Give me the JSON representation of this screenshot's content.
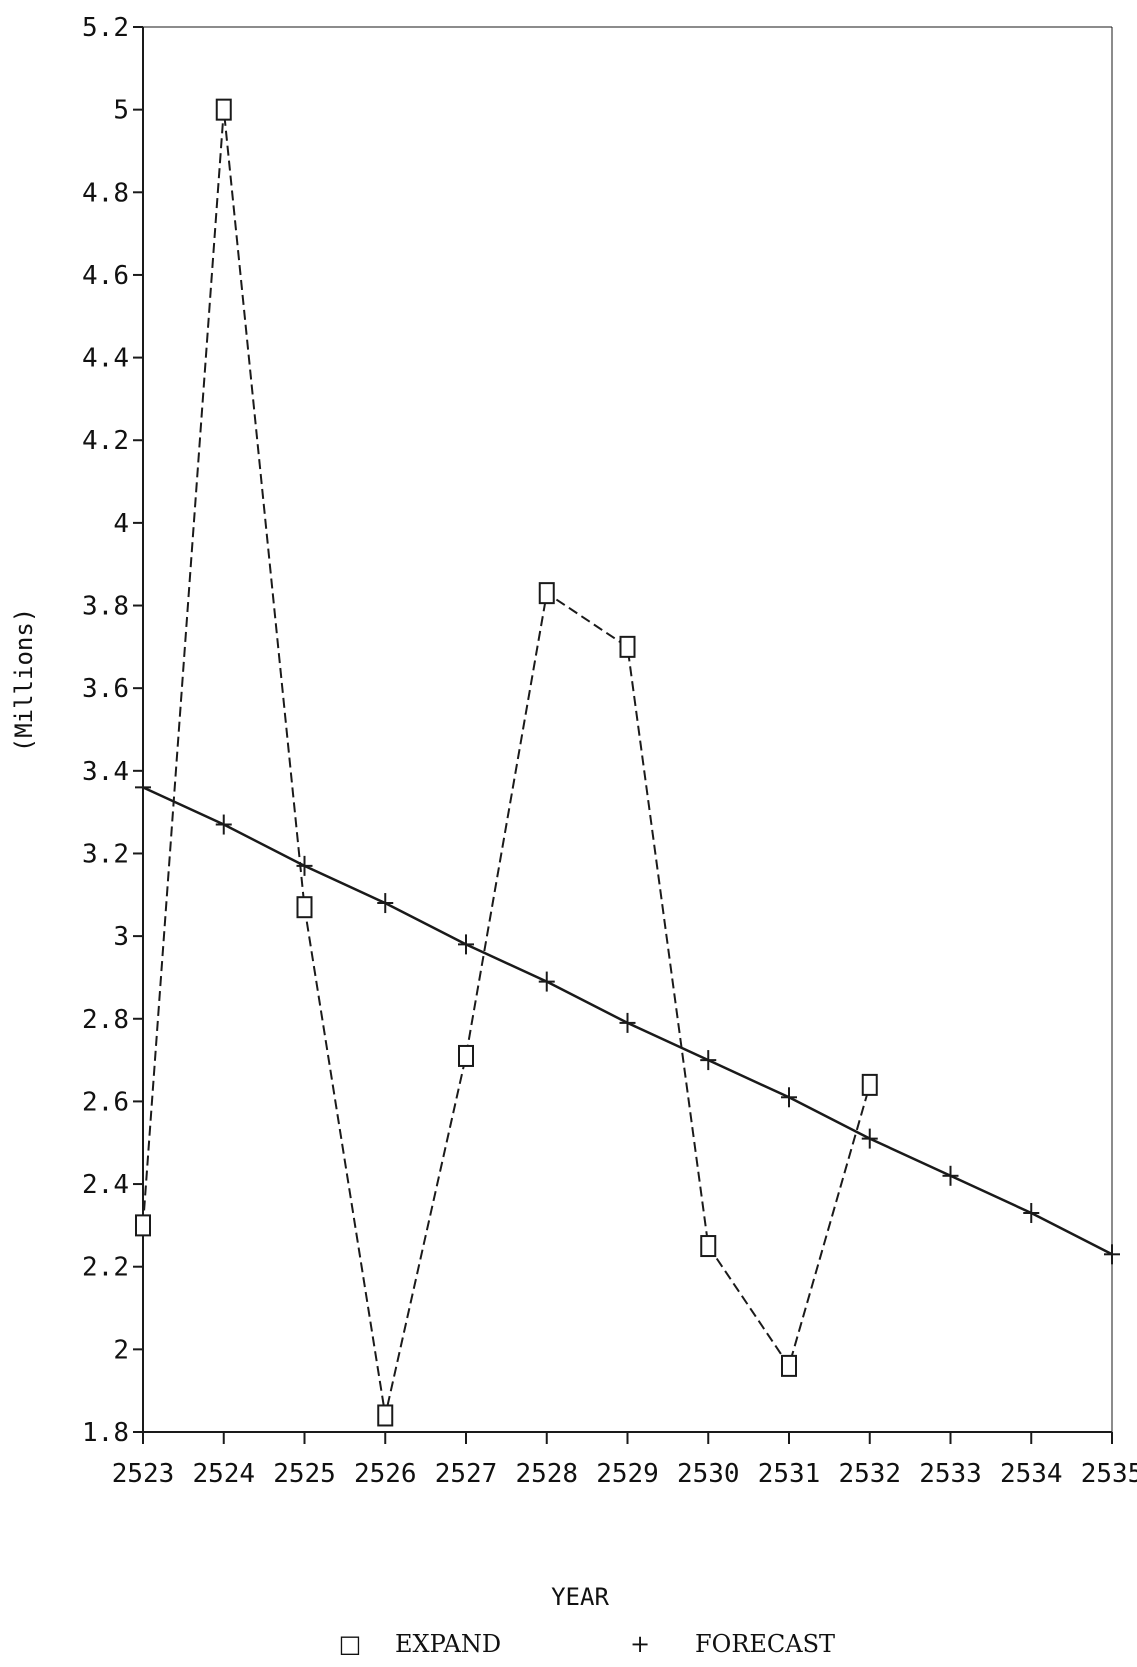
{
  "chart_data": {
    "type": "line",
    "ylabel": "(Millions)",
    "xlabel": "YEAR",
    "ylim": [
      1.8,
      5.2
    ],
    "xlim": [
      2523,
      2535
    ],
    "yticks": [
      "1.8",
      "2",
      "2.2",
      "2.4",
      "2.6",
      "2.8",
      "3",
      "3.2",
      "3.4",
      "3.6",
      "3.8",
      "4",
      "4.2",
      "4.4",
      "4.6",
      "4.8",
      "5",
      "5.2"
    ],
    "xticks": [
      "2523",
      "2524",
      "2525",
      "2526",
      "2527",
      "2528",
      "2529",
      "2530",
      "2531",
      "2532",
      "2533",
      "2534",
      "2535"
    ],
    "grid": false,
    "legend_position": "bottom-center",
    "series": [
      {
        "name": "EXPAND",
        "marker": "square",
        "line_style": "dashed",
        "x": [
          2523,
          2524,
          2525,
          2526,
          2527,
          2528,
          2529,
          2530,
          2531,
          2532
        ],
        "y": [
          2.3,
          5.0,
          3.07,
          1.84,
          2.71,
          3.83,
          3.7,
          2.25,
          1.96,
          2.64
        ]
      },
      {
        "name": "FORECAST",
        "marker": "plus",
        "line_style": "solid",
        "x": [
          2523,
          2524,
          2525,
          2526,
          2527,
          2528,
          2529,
          2530,
          2531,
          2532,
          2533,
          2534,
          2535
        ],
        "y": [
          3.36,
          3.27,
          3.17,
          3.08,
          2.98,
          2.89,
          2.79,
          2.7,
          2.61,
          2.51,
          2.42,
          2.33,
          2.23
        ]
      }
    ],
    "legend": [
      {
        "symbol": "□",
        "label": "EXPAND"
      },
      {
        "symbol": "+",
        "label": "FORECAST"
      }
    ],
    "colors": {
      "line": "#1a1a1a",
      "background": "#ffffff"
    }
  }
}
